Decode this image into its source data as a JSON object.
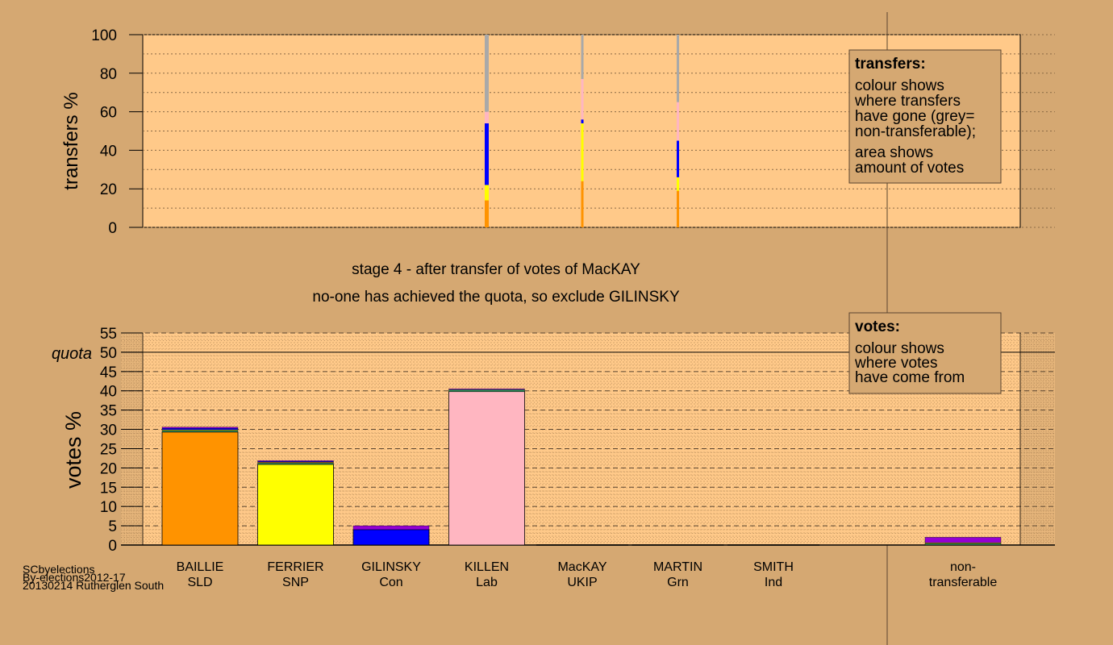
{
  "chart_data": [
    {
      "type": "bar",
      "subtype": "stacked-transfers",
      "ylabel": "transfers %",
      "ylim": [
        0,
        100
      ],
      "yticks": [
        0,
        20,
        40,
        60,
        80,
        100
      ],
      "grid": true,
      "columns": [
        {
          "candidate": "KILLEN",
          "segments": [
            {
              "color": "#FF9300",
              "from": 0,
              "to": 14
            },
            {
              "color": "#FFFF00",
              "from": 14,
              "to": 22
            },
            {
              "color": "#0000FF",
              "from": 22,
              "to": 54
            },
            {
              "color": "#FFB6C1",
              "from": 54,
              "to": 60
            },
            {
              "color": "#A9A9A9",
              "from": 60,
              "to": 100
            }
          ]
        },
        {
          "candidate": "MacKAY",
          "segments": [
            {
              "color": "#FF9300",
              "from": 0,
              "to": 24
            },
            {
              "color": "#FFFF00",
              "from": 24,
              "to": 54
            },
            {
              "color": "#0000FF",
              "from": 54,
              "to": 56
            },
            {
              "color": "#FFB6C1",
              "from": 56,
              "to": 77
            },
            {
              "color": "#A9A9A9",
              "from": 77,
              "to": 100
            }
          ]
        },
        {
          "candidate": "MARTIN",
          "segments": [
            {
              "color": "#FF9300",
              "from": 0,
              "to": 19
            },
            {
              "color": "#FFFF00",
              "from": 19,
              "to": 26
            },
            {
              "color": "#0000FF",
              "from": 26,
              "to": 45
            },
            {
              "color": "#FFB6C1",
              "from": 45,
              "to": 65
            },
            {
              "color": "#A9A9A9",
              "from": 65,
              "to": 100
            }
          ]
        }
      ]
    },
    {
      "type": "bar",
      "subtype": "stacked-votes",
      "ylabel": "votes %",
      "ylim": [
        0,
        55
      ],
      "yticks": [
        0,
        5,
        10,
        15,
        20,
        25,
        30,
        35,
        40,
        45,
        50,
        55
      ],
      "quota": 50,
      "quota_label": "quota",
      "grid": true,
      "candidates": [
        {
          "name": "BAILLIE",
          "party": "SLD",
          "color": "#FF9300",
          "first": 29.3,
          "extra": [
            {
              "color": "#2E8B57",
              "value": 0.4
            },
            {
              "color": "#FFFF00",
              "value": 0.2
            },
            {
              "color": "#0000FF",
              "value": 0.4
            },
            {
              "color": "#9400D3",
              "value": 0.3
            }
          ]
        },
        {
          "name": "FERRIER",
          "party": "SNP",
          "color": "#FFFF00",
          "first": 20.9,
          "extra": [
            {
              "color": "#2E8B57",
              "value": 0.4
            },
            {
              "color": "#FF9300",
              "value": 0.2
            },
            {
              "color": "#0000FF",
              "value": 0.2
            },
            {
              "color": "#9400D3",
              "value": 0.2
            }
          ]
        },
        {
          "name": "GILINSKY",
          "party": "Con",
          "color": "#0000FF",
          "first": 4.0,
          "extra": [
            {
              "color": "#9400D3",
              "value": 1.0
            }
          ]
        },
        {
          "name": "KILLEN",
          "party": "Lab",
          "color": "#FFB6C1",
          "first": 39.8,
          "extra": [
            {
              "color": "#2E8B57",
              "value": 0.5
            },
            {
              "color": "#9400D3",
              "value": 0.2
            }
          ]
        },
        {
          "name": "MacKAY",
          "party": "UKIP",
          "color": "#800080",
          "first": 0,
          "extra": []
        },
        {
          "name": "MARTIN",
          "party": "Grn",
          "color": "#2E8B57",
          "first": 0,
          "extra": []
        },
        {
          "name": "SMITH",
          "party": "Ind",
          "color": "#888888",
          "first": 0,
          "extra": []
        }
      ],
      "nontransferable": {
        "label1": "non-",
        "label2": "transferable",
        "segments": [
          {
            "color": "#2E8B57",
            "value": 0.4
          },
          {
            "color": "#FFFF00",
            "value": 0.2
          },
          {
            "color": "#9400D3",
            "value": 1.4
          }
        ]
      }
    }
  ],
  "stage_title": "stage 4 - after transfer of votes of MacKAY",
  "stage_subtitle": "no-one has achieved the quota, so exclude GILINSKY",
  "legend_transfers": {
    "title": "transfers:",
    "lines": [
      "colour shows",
      "where transfers",
      "have gone (grey=",
      "non-transferable);"
    ],
    "lines2": [
      "area shows",
      "amount of votes"
    ]
  },
  "legend_votes": {
    "title": "votes:",
    "lines": [
      "colour shows",
      "where votes",
      "have come from"
    ]
  },
  "footer": {
    "line1": "SCbyelections",
    "line2": "By-elections2012-17",
    "line3": "20130214 Rutherglen South"
  },
  "colors": {
    "background": "#D5A872",
    "plot": "#FFC989",
    "axis": "#000000"
  }
}
